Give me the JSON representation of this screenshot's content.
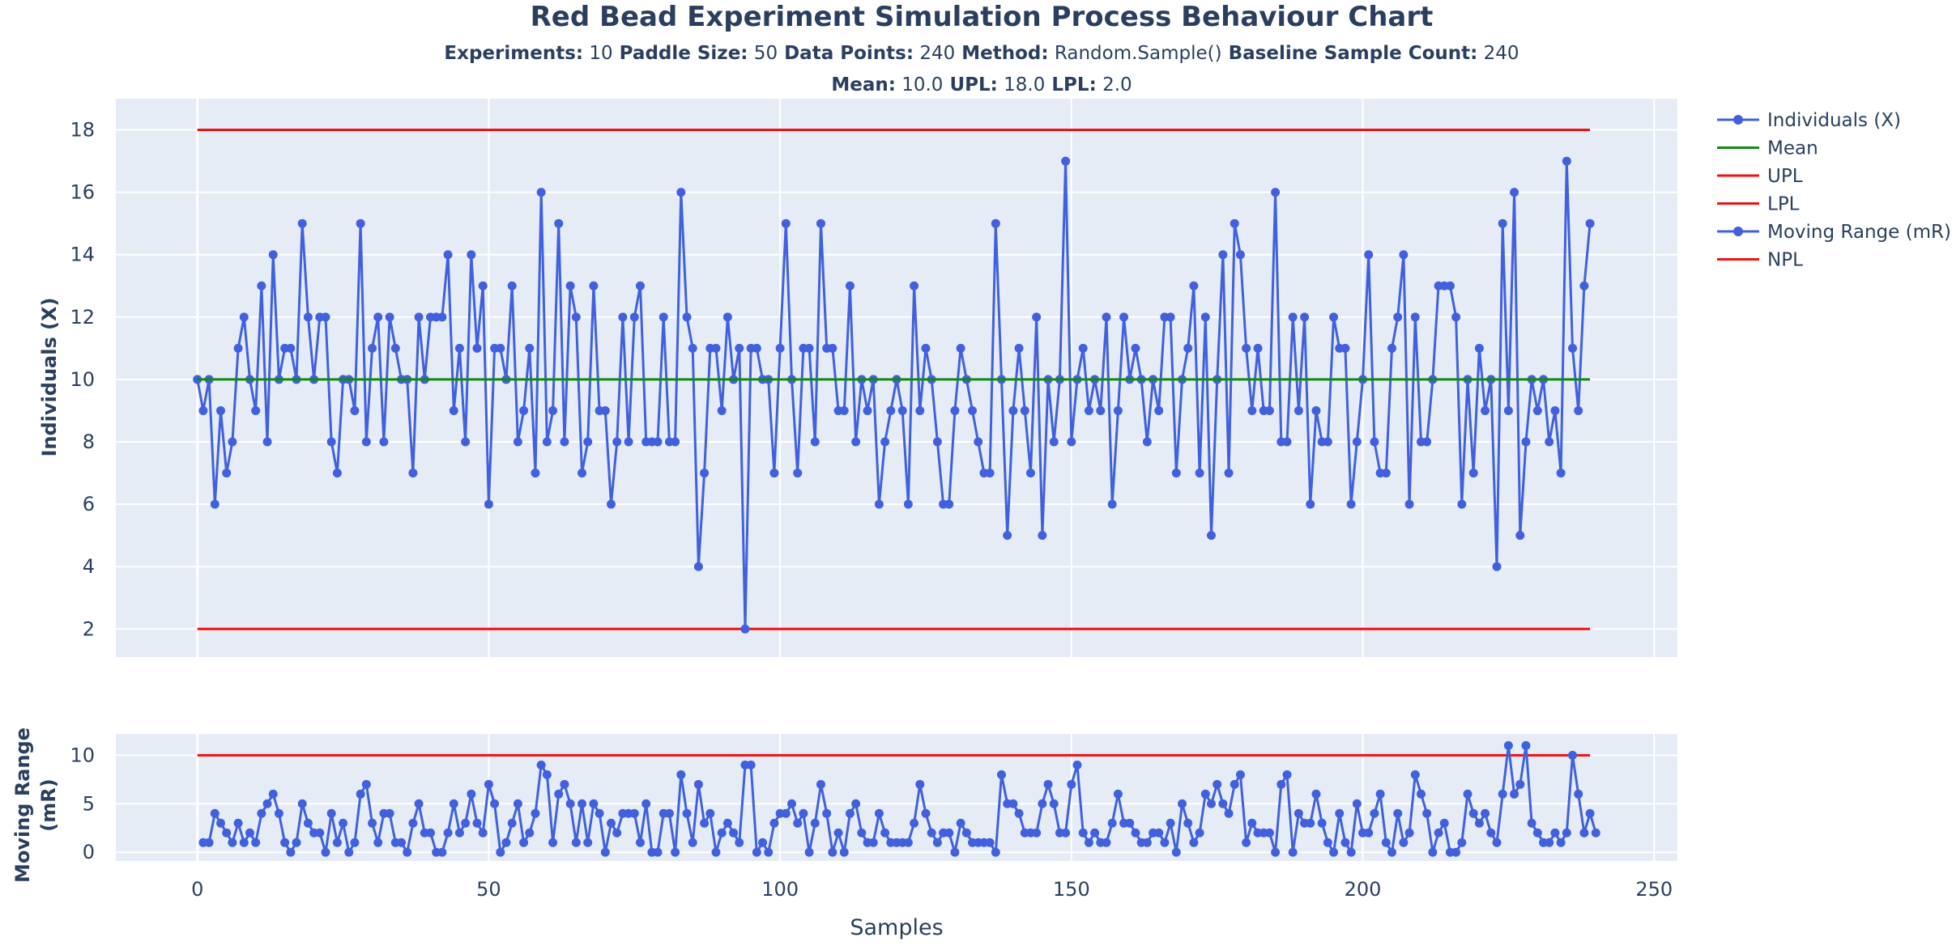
{
  "chart_data": {
    "type": "line",
    "title": "Red Bead Experiment Simulation Process Behaviour Chart",
    "subtitle_line1": [
      {
        "label": "Experiments:",
        "value": "10"
      },
      {
        "label": "Paddle Size:",
        "value": "50"
      },
      {
        "label": "Data Points:",
        "value": "240"
      },
      {
        "label": "Method:",
        "value": "Random.Sample()"
      },
      {
        "label": "Baseline Sample Count:",
        "value": "240"
      }
    ],
    "subtitle_line2": [
      {
        "label": "Mean:",
        "value": "10.0"
      },
      {
        "label": "UPL:",
        "value": "18.0"
      },
      {
        "label": "LPL:",
        "value": "2.0"
      }
    ],
    "xlabel": "Samples",
    "xlim": [
      -14,
      254
    ],
    "xticks": [
      0,
      50,
      100,
      150,
      200,
      250
    ],
    "individuals": {
      "ylabel": "Individuals (X)",
      "ylim": [
        1.1,
        19.0
      ],
      "yticks": [
        2,
        4,
        6,
        8,
        10,
        12,
        14,
        16,
        18
      ],
      "values": [
        10,
        9,
        10,
        6,
        9,
        7,
        8,
        11,
        12,
        10,
        9,
        13,
        8,
        14,
        10,
        11,
        11,
        10,
        15,
        12,
        10,
        12,
        12,
        8,
        7,
        10,
        10,
        9,
        15,
        8,
        11,
        12,
        8,
        12,
        11,
        10,
        10,
        7,
        12,
        10,
        12,
        12,
        12,
        14,
        9,
        11,
        8,
        14,
        11,
        13,
        6,
        11,
        11,
        10,
        13,
        8,
        9,
        11,
        7,
        16,
        8,
        9,
        15,
        8,
        13,
        12,
        7,
        8,
        13,
        9,
        9,
        6,
        8,
        12,
        8,
        12,
        13,
        8,
        8,
        8,
        12,
        8,
        8,
        16,
        12,
        11,
        4,
        7,
        11,
        11,
        9,
        12,
        10,
        11,
        2,
        11,
        11,
        10,
        10,
        7,
        11,
        15,
        10,
        7,
        11,
        11,
        8,
        15,
        11,
        11,
        9,
        9,
        13,
        8,
        10,
        9,
        10,
        6,
        8,
        9,
        10,
        9,
        6,
        13,
        9,
        11,
        10,
        8,
        6,
        6,
        9,
        11,
        10,
        9,
        8,
        7,
        7,
        15,
        10,
        5,
        9,
        11,
        9,
        7,
        12,
        5,
        10,
        8,
        10,
        17,
        8,
        10,
        11,
        9,
        10,
        9,
        12,
        6,
        9,
        12,
        10,
        11,
        10,
        8,
        10,
        9,
        12,
        12,
        7,
        10,
        11,
        13,
        7,
        12,
        5,
        10,
        14,
        7,
        15,
        14,
        11,
        9,
        11,
        9,
        9,
        16,
        8,
        8,
        12,
        9,
        12,
        6,
        9,
        8,
        8,
        12,
        11,
        11,
        6,
        8,
        10,
        14,
        8,
        7,
        7,
        11,
        12,
        14,
        6,
        12,
        8,
        8,
        10,
        13,
        13,
        13,
        12,
        6,
        10,
        7,
        11,
        9,
        10,
        4,
        15,
        9,
        16,
        5,
        8,
        10,
        9,
        10,
        8,
        9,
        7,
        17,
        11,
        9,
        13,
        15
      ]
    },
    "moving_range": {
      "ylabel": [
        "Moving Range",
        "(mR)"
      ],
      "ylim": [
        -0.9,
        12.2
      ],
      "yticks": [
        0,
        5,
        10
      ],
      "values": [
        null,
        1,
        1,
        4,
        3,
        2,
        1,
        3,
        1,
        2,
        1,
        4,
        5,
        6,
        4,
        1,
        0,
        1,
        5,
        3,
        2,
        2,
        0,
        4,
        1,
        3,
        0,
        1,
        6,
        7,
        3,
        1,
        4,
        4,
        1,
        1,
        0,
        3,
        5,
        2,
        2,
        0,
        0,
        2,
        5,
        2,
        3,
        6,
        3,
        2,
        7,
        5,
        0,
        1,
        3,
        5,
        1,
        2,
        4,
        9,
        8,
        1,
        6,
        7,
        5,
        1,
        5,
        1,
        5,
        4,
        0,
        3,
        2,
        4,
        4,
        4,
        1,
        5,
        0,
        0,
        4,
        4,
        0,
        8,
        4,
        1,
        7,
        3,
        4,
        0,
        2,
        3,
        2,
        1,
        9,
        9,
        0,
        1,
        0,
        3,
        4,
        4,
        5,
        3,
        4,
        0,
        3,
        7,
        4,
        0,
        2,
        0,
        4,
        5,
        2,
        1,
        1,
        4,
        2,
        1,
        1,
        1,
        1,
        3,
        7,
        4,
        2,
        1,
        2,
        2,
        0,
        3,
        2,
        1,
        1,
        1,
        1,
        0,
        8,
        5,
        5,
        4,
        2,
        2,
        2,
        5,
        7,
        5,
        2,
        2,
        7,
        9,
        2,
        1,
        2,
        1,
        1,
        3,
        6,
        3,
        3,
        2,
        1,
        1,
        2,
        2,
        1,
        3,
        0,
        5,
        3,
        1,
        2,
        6,
        5,
        7,
        5,
        4,
        7,
        8,
        1,
        3,
        2,
        2,
        2,
        0,
        7,
        8,
        0,
        4,
        3,
        3,
        6,
        3,
        1,
        0,
        4,
        1,
        0,
        5,
        2,
        2,
        4,
        6,
        1,
        0,
        4,
        1,
        2,
        8,
        6,
        4,
        0,
        2,
        3,
        0,
        0,
        1,
        6,
        4,
        3,
        4,
        2,
        1,
        6,
        11,
        6,
        7,
        11,
        3,
        2,
        1,
        1,
        2,
        1,
        2,
        10,
        6,
        2,
        4,
        2
      ],
      "npl": 10
    },
    "limits": {
      "mean": 10.0,
      "upl": 18.0,
      "lpl": 2.0
    },
    "legend": {
      "position": "right",
      "entries": [
        {
          "name": "Individuals (X)",
          "marker": true,
          "color": "#4160de"
        },
        {
          "name": "Mean",
          "marker": false,
          "color": "#138a13"
        },
        {
          "name": "UPL",
          "marker": false,
          "color": "#ee1111"
        },
        {
          "name": "LPL",
          "marker": false,
          "color": "#ee1111"
        },
        {
          "name": "Moving Range (mR)",
          "marker": true,
          "color": "#4160de"
        },
        {
          "name": "NPL",
          "marker": false,
          "color": "#ee1111"
        }
      ]
    },
    "colors": {
      "series": "#4160de",
      "mean": "#138a13",
      "limit": "#ee1111",
      "plot_bg": "#e5ecf6",
      "grid": "#ffffff"
    },
    "grid": true
  }
}
